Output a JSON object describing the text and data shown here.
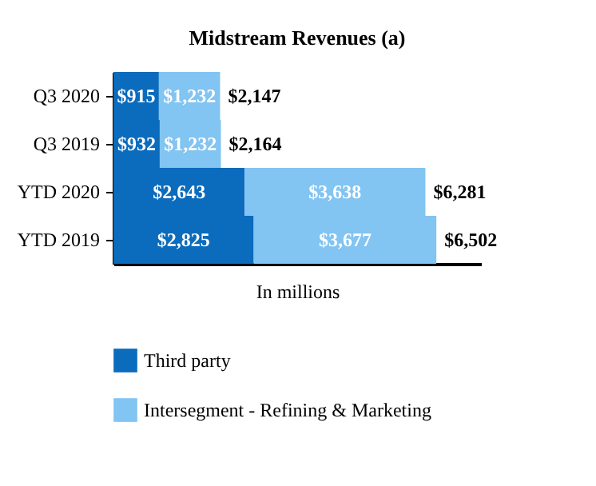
{
  "chart_data": {
    "type": "bar",
    "orientation": "horizontal",
    "stacked": true,
    "title": "Midstream Revenues (a)",
    "xlabel": "In millions",
    "categories": [
      "Q3 2020",
      "Q3 2019",
      "YTD 2020",
      "YTD 2019"
    ],
    "series": [
      {
        "name": "Third party",
        "color": "#0b6cbd",
        "values": [
          915,
          932,
          2643,
          2825
        ],
        "value_labels": [
          "$915",
          "$932",
          "$2,643",
          "$2,825"
        ]
      },
      {
        "name": "Intersegment - Refining & Marketing",
        "color": "#82c4f2",
        "values": [
          1232,
          1232,
          3638,
          3677
        ],
        "value_labels": [
          "$1,232",
          "$1,232",
          "$3,638",
          "$3,677"
        ]
      }
    ],
    "totals": [
      "$2,147",
      "$2,164",
      "$6,281",
      "$6,502"
    ],
    "xlim": [
      0,
      7400
    ],
    "legend": "bottom",
    "tick_labels": "y"
  }
}
